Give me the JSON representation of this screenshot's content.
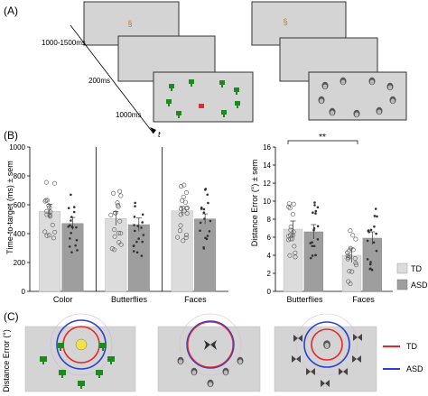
{
  "panels": {
    "a": "(A)",
    "b": "(B)",
    "c": "(C)"
  },
  "panel_a": {
    "timings": [
      "1000-1500ms",
      "200ms",
      "1000ms"
    ],
    "time_axis": "t"
  },
  "panel_c": {
    "ylabel": "Distance Error (°)",
    "legend": [
      {
        "label": "TD",
        "color": "#e8262b"
      },
      {
        "label": "ASD",
        "color": "#2a3fd6"
      }
    ]
  },
  "colors": {
    "td_bar": "#dcdcdc",
    "asd_bar": "#9e9e9e",
    "screen_fill": "#d4d4d4",
    "target": "#e8262b"
  },
  "chart_data": [
    {
      "type": "bar",
      "ylabel": "Time-to-target (ms) ± sem",
      "ylim": [
        0,
        1000
      ],
      "yticks": [
        0,
        200,
        400,
        600,
        800,
        1000
      ],
      "categories": [
        "Color",
        "Butterflies",
        "Faces"
      ],
      "series": [
        {
          "name": "TD",
          "values": [
            555,
            505,
            558
          ],
          "sem": [
            48,
            48,
            30
          ]
        },
        {
          "name": "ASD",
          "values": [
            470,
            462,
            502
          ],
          "sem": [
            42,
            46,
            35
          ]
        }
      ]
    },
    {
      "type": "bar",
      "ylabel": "Distance Error (°) ± sem",
      "ylim": [
        0,
        16
      ],
      "yticks": [
        0,
        2,
        4,
        6,
        8,
        10,
        12,
        14,
        16
      ],
      "categories": [
        "Butterflies",
        "Faces"
      ],
      "series": [
        {
          "name": "TD",
          "values": [
            6.9,
            4.0
          ],
          "sem": [
            0.9,
            0.8
          ]
        },
        {
          "name": "ASD",
          "values": [
            6.6,
            5.9
          ],
          "sem": [
            0.8,
            0.7
          ]
        }
      ],
      "annotation": "**",
      "legend": [
        "TD",
        "ASD"
      ]
    }
  ]
}
